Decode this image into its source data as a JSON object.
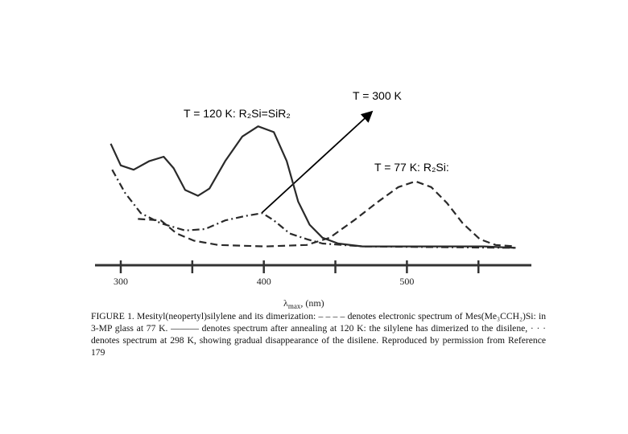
{
  "chart_data": {
    "type": "line",
    "annotations": [
      "T = 300 K",
      "T = 120 K: R₂Si=SiR₂",
      "T = 77 K: R₂Si:"
    ],
    "x_label_symbol": "λ",
    "x_label_sub": "max",
    "x_label_unit": ", (nm)",
    "xlim": [
      282,
      587
    ],
    "xticks": [
      300,
      400,
      500
    ],
    "xminorticks": [
      350,
      450,
      550
    ],
    "ylim": [
      0,
      1
    ],
    "series": [
      {
        "color": "#2a2a2a",
        "dash": "solid",
        "x": [
          293,
          300,
          309,
          320,
          330,
          337,
          345,
          354,
          362,
          373,
          385,
          396,
          407,
          416,
          424,
          432,
          441,
          452,
          469,
          497,
          554,
          576
        ],
        "values": [
          0.84,
          0.69,
          0.66,
          0.72,
          0.75,
          0.67,
          0.52,
          0.48,
          0.53,
          0.72,
          0.89,
          0.96,
          0.92,
          0.72,
          0.44,
          0.28,
          0.19,
          0.15,
          0.13,
          0.13,
          0.13,
          0.12
        ]
      },
      {
        "color": "#2a2a2a",
        "dash": "dashdot",
        "x": [
          294,
          303,
          314,
          328,
          345,
          359,
          373,
          387,
          399,
          407,
          418,
          430,
          441,
          469,
          576
        ],
        "values": [
          0.66,
          0.5,
          0.36,
          0.29,
          0.24,
          0.25,
          0.31,
          0.34,
          0.36,
          0.31,
          0.22,
          0.18,
          0.15,
          0.13,
          0.12
        ]
      },
      {
        "color": "#2a2a2a",
        "dash": "dashed",
        "x": [
          312,
          328,
          339,
          351,
          368,
          401,
          430,
          446,
          463,
          480,
          494,
          506,
          517,
          528,
          539,
          551,
          562,
          576
        ],
        "values": [
          0.32,
          0.31,
          0.22,
          0.17,
          0.14,
          0.13,
          0.14,
          0.19,
          0.31,
          0.44,
          0.54,
          0.58,
          0.54,
          0.43,
          0.29,
          0.18,
          0.14,
          0.13
        ]
      }
    ],
    "caption": "FIGURE 1. Mesityl(neopertyl)silylene and its dimerization: – – – – denotes electronic spectrum of Mes(Me₃CCH₂)Si: in 3-MP glass at 77 K. ——— denotes spectrum after annealing at 120 K: the silylene has dimerized to the disilene, · · · denotes spectrum at 298 K, showing gradual disappearance of the disilene. Reproduced by permission from Reference 179"
  }
}
